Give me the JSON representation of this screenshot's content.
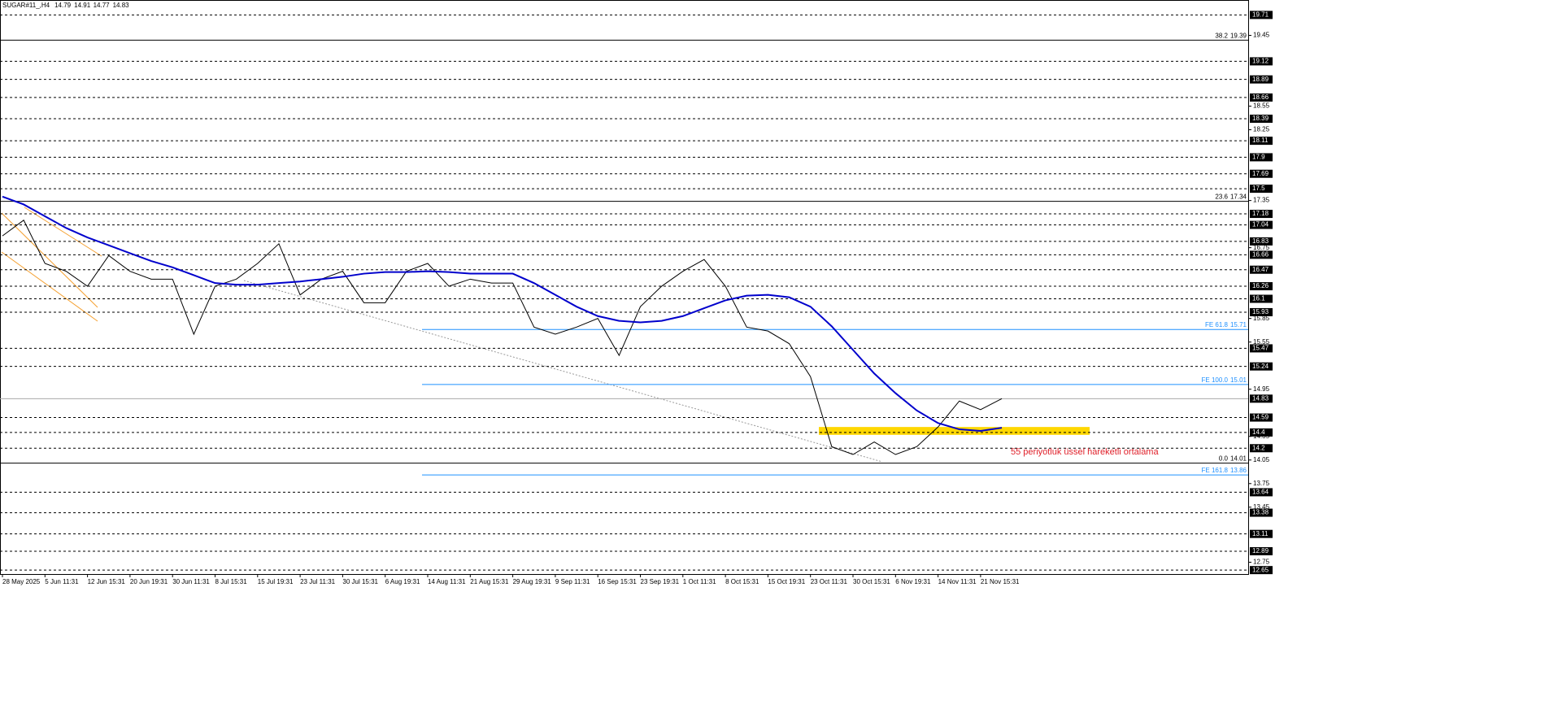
{
  "chart_data": {
    "type": "line",
    "header": {
      "symbol": "SUGAR#11_,H4",
      "ohlc": [
        14.79,
        14.91,
        14.77,
        14.83
      ]
    },
    "annotation": "55 periyotluk üssel hareketli ortalama",
    "categories": [
      "28 May 2025",
      null,
      "5 Jun 11:31",
      null,
      "12 Jun 15:31",
      null,
      "20 Jun 19:31",
      null,
      "30 Jun 11:31",
      null,
      "8 Jul 15:31",
      null,
      "15 Jul 19:31",
      null,
      "23 Jul 11:31",
      null,
      "30 Jul 15:31",
      null,
      "6 Aug 19:31",
      null,
      "14 Aug 11:31",
      null,
      "21 Aug 15:31",
      null,
      "29 Aug 19:31",
      null,
      "9 Sep 11:31",
      null,
      "16 Sep 15:31",
      null,
      "23 Sep 19:31",
      null,
      "1 Oct 11:31",
      null,
      "8 Oct 15:31",
      null,
      "15 Oct 19:31",
      null,
      "23 Oct 11:31",
      null,
      "30 Oct 15:31",
      null,
      "6 Nov 19:31",
      null,
      "14 Nov 11:31",
      null,
      "21 Nov 15:31",
      null
    ],
    "series": [
      {
        "name": "SUGAR#11_",
        "color": "#000000",
        "values": [
          16.9,
          17.1,
          16.55,
          16.45,
          16.26,
          16.65,
          16.45,
          16.35,
          16.35,
          15.65,
          16.26,
          16.35,
          16.55,
          16.8,
          16.15,
          16.35,
          16.45,
          16.05,
          16.05,
          16.45,
          16.55,
          16.26,
          16.35,
          16.3,
          16.3,
          15.74,
          15.65,
          15.74,
          15.85,
          15.38,
          16.0,
          16.26,
          16.45,
          16.6,
          16.26,
          15.74,
          15.69,
          15.53,
          15.11,
          14.22,
          14.12,
          14.28,
          14.12,
          14.22,
          14.47,
          14.8,
          14.69,
          14.83
        ]
      },
      {
        "name": "EMA 55",
        "color": "#0000cc",
        "values": [
          17.4,
          17.3,
          17.15,
          17.0,
          16.88,
          16.78,
          16.68,
          16.58,
          16.5,
          16.4,
          16.3,
          16.28,
          16.28,
          16.3,
          16.32,
          16.35,
          16.38,
          16.42,
          16.44,
          16.44,
          16.45,
          16.44,
          16.42,
          16.42,
          16.42,
          16.3,
          16.15,
          16.0,
          15.88,
          15.82,
          15.8,
          15.82,
          15.88,
          15.98,
          16.08,
          16.14,
          16.15,
          16.12,
          16.0,
          15.75,
          15.45,
          15.15,
          14.9,
          14.68,
          14.52,
          14.44,
          14.42,
          14.46
        ]
      }
    ],
    "ylim": [
      12.6,
      19.9
    ],
    "yticks": [
      19.45,
      18.55,
      18.25,
      17.35,
      16.75,
      15.85,
      15.55,
      14.95,
      14.35,
      14.05,
      13.75,
      13.45,
      12.75
    ],
    "levels": [
      19.71,
      19.12,
      18.89,
      18.66,
      18.39,
      18.11,
      17.9,
      17.69,
      17.5,
      17.18,
      17.04,
      16.83,
      16.66,
      16.47,
      16.26,
      16.1,
      15.93,
      15.47,
      15.24,
      14.59,
      14.4,
      14.2,
      13.64,
      13.38,
      13.11,
      12.89,
      12.65
    ],
    "fib": [
      {
        "name": "38.2",
        "value": 19.39
      },
      {
        "name": "23.6",
        "value": 17.34
      },
      {
        "name": "0.0",
        "value": 14.01
      }
    ],
    "fe": [
      {
        "name": "FE 61.8",
        "value": 15.71
      },
      {
        "name": "FE 100.0",
        "value": 15.01
      },
      {
        "name": "FE 161.8",
        "value": 13.86
      }
    ],
    "price_line": 14.83,
    "zone": [
      14.37,
      14.47
    ],
    "zone_color": "#ffd700"
  }
}
